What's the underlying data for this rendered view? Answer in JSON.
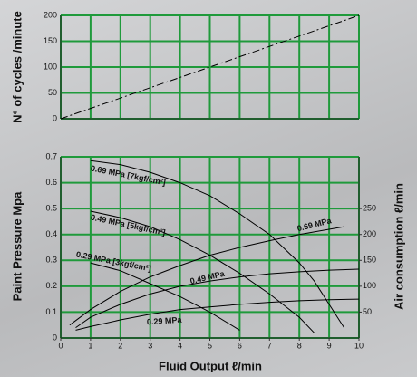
{
  "chart_data": [
    {
      "type": "line",
      "ylabel": "N° of cycles /minute",
      "xlim": [
        0,
        10
      ],
      "ylim": [
        0,
        200
      ],
      "yticks": [
        0,
        50,
        100,
        150,
        200
      ],
      "grid": true,
      "series": [
        {
          "x": [
            0,
            10
          ],
          "values": [
            0,
            200
          ],
          "color": "#000000",
          "dashed": true
        }
      ]
    },
    {
      "type": "line",
      "xlabel": "Fluid Output ℓ/min",
      "ylabel": "Paint Pressure Mpa",
      "y2label": "Air consumption ℓ/min",
      "xlim": [
        0,
        10
      ],
      "ylim": [
        0,
        0.7
      ],
      "y2lim": [
        0,
        350
      ],
      "xticks": [
        0,
        1,
        2,
        3,
        4,
        5,
        6,
        7,
        8,
        9,
        10
      ],
      "yticks": [
        0,
        0.1,
        0.2,
        0.3,
        0.4,
        0.5,
        0.6,
        0.7
      ],
      "y2ticks": [
        50,
        100,
        150,
        200,
        250
      ],
      "grid": true,
      "series": [
        {
          "name": "0.69 MPa [7kgf/cm²]",
          "color": "#000000",
          "x": [
            1,
            2,
            3,
            4,
            5,
            6,
            7,
            8,
            8.5,
            9,
            9.5
          ],
          "values": [
            0.685,
            0.67,
            0.64,
            0.6,
            0.55,
            0.48,
            0.4,
            0.29,
            0.22,
            0.13,
            0.04
          ]
        },
        {
          "name": "0.49 MPa [5kgf/cm²]",
          "color": "#000000",
          "x": [
            1,
            2,
            3,
            4,
            5,
            6,
            7,
            8,
            8.5
          ],
          "values": [
            0.49,
            0.465,
            0.43,
            0.38,
            0.32,
            0.25,
            0.17,
            0.08,
            0.02
          ]
        },
        {
          "name": "0.29 MPa [3kgf/cm²]",
          "color": "#000000",
          "x": [
            1,
            2,
            3,
            4,
            5,
            6
          ],
          "values": [
            0.29,
            0.26,
            0.21,
            0.16,
            0.1,
            0.03
          ]
        },
        {
          "name": "0.69 MPa",
          "color": "#000000",
          "axis": "y2",
          "x": [
            0.3,
            1,
            2,
            3,
            4,
            5,
            6,
            7,
            8,
            9,
            9.5
          ],
          "values": [
            25,
            55,
            90,
            118,
            140,
            160,
            175,
            188,
            200,
            210,
            215
          ]
        },
        {
          "name": "0.49 MPa",
          "color": "#000000",
          "axis": "y2",
          "x": [
            0.5,
            1,
            2,
            3,
            4,
            5,
            6,
            7,
            8,
            9,
            10
          ],
          "values": [
            20,
            40,
            65,
            85,
            100,
            110,
            118,
            124,
            128,
            131,
            133
          ]
        },
        {
          "name": "0.29 MPa",
          "color": "#000000",
          "axis": "y2",
          "x": [
            0.5,
            1,
            2,
            3,
            4,
            5,
            6,
            7,
            8,
            9,
            10
          ],
          "values": [
            15,
            22,
            35,
            46,
            55,
            60,
            65,
            69,
            72,
            74,
            75
          ]
        }
      ]
    }
  ]
}
